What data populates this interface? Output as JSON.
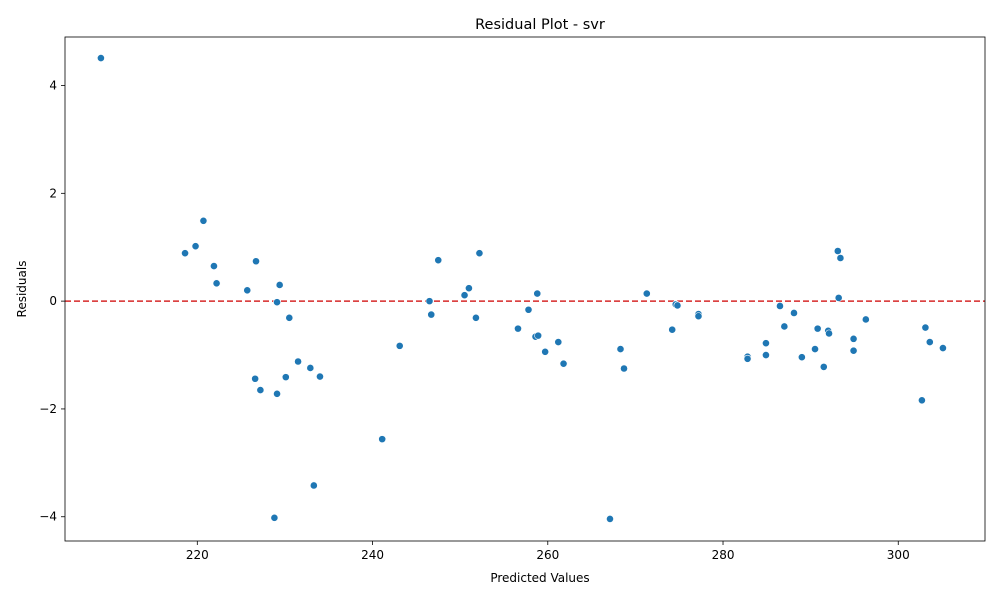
{
  "chart_data": {
    "type": "scatter",
    "title": "Residual Plot - svr",
    "xlabel": "Predicted Values",
    "ylabel": "Residuals",
    "xlim": [
      204.9,
      309.9
    ],
    "ylim": [
      -4.45,
      4.9
    ],
    "xticks": [
      220,
      240,
      260,
      280,
      300
    ],
    "yticks": [
      -4,
      -2,
      0,
      2,
      4
    ],
    "reference_line": {
      "y": 0,
      "color": "#d62728",
      "style": "dashed"
    },
    "point_color": "#1f77b4",
    "grid": false,
    "points": [
      {
        "x": 209.0,
        "y": 4.51
      },
      {
        "x": 218.6,
        "y": 0.89
      },
      {
        "x": 219.8,
        "y": 1.02
      },
      {
        "x": 220.7,
        "y": 1.49
      },
      {
        "x": 221.9,
        "y": 0.65
      },
      {
        "x": 222.2,
        "y": 0.33
      },
      {
        "x": 225.7,
        "y": 0.2
      },
      {
        "x": 226.7,
        "y": 0.74
      },
      {
        "x": 226.6,
        "y": -1.44
      },
      {
        "x": 227.2,
        "y": -1.65
      },
      {
        "x": 228.8,
        "y": -4.02
      },
      {
        "x": 229.1,
        "y": -1.72
      },
      {
        "x": 229.1,
        "y": -0.02
      },
      {
        "x": 229.4,
        "y": 0.3
      },
      {
        "x": 230.1,
        "y": -1.41
      },
      {
        "x": 230.5,
        "y": -0.31
      },
      {
        "x": 231.5,
        "y": -1.12
      },
      {
        "x": 232.9,
        "y": -1.24
      },
      {
        "x": 233.3,
        "y": -3.42
      },
      {
        "x": 234.0,
        "y": -1.4
      },
      {
        "x": 241.1,
        "y": -2.56
      },
      {
        "x": 243.1,
        "y": -0.83
      },
      {
        "x": 246.5,
        "y": 0.0
      },
      {
        "x": 246.7,
        "y": -0.25
      },
      {
        "x": 247.5,
        "y": 0.76
      },
      {
        "x": 250.5,
        "y": 0.11
      },
      {
        "x": 251.0,
        "y": 0.24
      },
      {
        "x": 251.8,
        "y": -0.31
      },
      {
        "x": 252.2,
        "y": 0.89
      },
      {
        "x": 256.6,
        "y": -0.51
      },
      {
        "x": 257.8,
        "y": -0.16
      },
      {
        "x": 258.6,
        "y": -0.66
      },
      {
        "x": 258.9,
        "y": -0.64
      },
      {
        "x": 258.8,
        "y": 0.14
      },
      {
        "x": 259.7,
        "y": -0.94
      },
      {
        "x": 261.2,
        "y": -0.76
      },
      {
        "x": 261.8,
        "y": -1.16
      },
      {
        "x": 267.1,
        "y": -4.04
      },
      {
        "x": 268.3,
        "y": -0.89
      },
      {
        "x": 268.7,
        "y": -1.25
      },
      {
        "x": 271.3,
        "y": 0.14
      },
      {
        "x": 274.2,
        "y": -0.53
      },
      {
        "x": 274.6,
        "y": -0.06
      },
      {
        "x": 274.8,
        "y": -0.08
      },
      {
        "x": 277.2,
        "y": -0.24
      },
      {
        "x": 277.2,
        "y": -0.28
      },
      {
        "x": 282.8,
        "y": -1.03
      },
      {
        "x": 282.8,
        "y": -1.07
      },
      {
        "x": 284.9,
        "y": -0.78
      },
      {
        "x": 284.9,
        "y": -1.0
      },
      {
        "x": 286.5,
        "y": -0.09
      },
      {
        "x": 287.0,
        "y": -0.47
      },
      {
        "x": 288.1,
        "y": -0.22
      },
      {
        "x": 289.0,
        "y": -1.04
      },
      {
        "x": 290.5,
        "y": -0.89
      },
      {
        "x": 290.8,
        "y": -0.51
      },
      {
        "x": 291.5,
        "y": -1.22
      },
      {
        "x": 292.0,
        "y": -0.55
      },
      {
        "x": 292.1,
        "y": -0.6
      },
      {
        "x": 293.1,
        "y": 0.93
      },
      {
        "x": 293.2,
        "y": 0.06
      },
      {
        "x": 293.4,
        "y": 0.8
      },
      {
        "x": 294.9,
        "y": -0.7
      },
      {
        "x": 294.9,
        "y": -0.92
      },
      {
        "x": 296.3,
        "y": -0.34
      },
      {
        "x": 302.7,
        "y": -1.84
      },
      {
        "x": 303.1,
        "y": -0.49
      },
      {
        "x": 303.6,
        "y": -0.76
      },
      {
        "x": 305.1,
        "y": -0.87
      }
    ]
  }
}
